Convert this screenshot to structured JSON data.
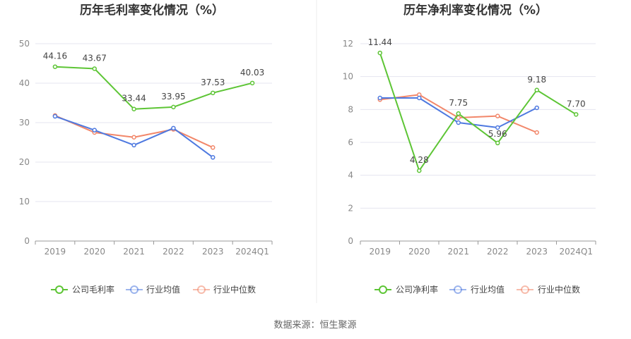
{
  "colors": {
    "company": "#5dc535",
    "industry_avg": "#4e79e0",
    "industry_median": "#f2876a",
    "grid": "#e5e5ef",
    "axis": "#999999",
    "divider": "#eeeeee"
  },
  "source_text": "数据来源：恒生聚源",
  "chart_data": [
    {
      "type": "line",
      "title": "历年毛利率变化情况（%）",
      "categories": [
        "2019",
        "2020",
        "2021",
        "2022",
        "2023",
        "2024Q1"
      ],
      "ylim": [
        0,
        50
      ],
      "yticks": [
        0,
        10,
        20,
        30,
        40,
        50
      ],
      "grid": true,
      "legend_position": "bottom",
      "series": [
        {
          "name": "公司毛利率",
          "color_key": "company",
          "values": [
            44.16,
            43.67,
            33.44,
            33.95,
            37.53,
            40.03
          ],
          "labels": [
            "44.16",
            "43.67",
            "33.44",
            "33.95",
            "37.53",
            "40.03"
          ]
        },
        {
          "name": "行业均值",
          "color_key": "industry_avg",
          "values": [
            31.6,
            28.1,
            24.3,
            28.6,
            21.2,
            null
          ]
        },
        {
          "name": "行业中位数",
          "color_key": "industry_median",
          "values": [
            31.8,
            27.5,
            26.3,
            28.3,
            23.7,
            null
          ]
        }
      ]
    },
    {
      "type": "line",
      "title": "历年净利率变化情况（%）",
      "categories": [
        "2019",
        "2020",
        "2021",
        "2022",
        "2023",
        "2024Q1"
      ],
      "ylim": [
        0,
        12
      ],
      "yticks": [
        0,
        2,
        4,
        6,
        8,
        10,
        12
      ],
      "grid": true,
      "legend_position": "bottom",
      "series": [
        {
          "name": "公司净利率",
          "color_key": "company",
          "values": [
            11.44,
            4.28,
            7.75,
            5.96,
            9.18,
            7.7
          ],
          "labels": [
            "11.44",
            "4.28",
            "7.75",
            "5.96",
            "9.18",
            "7.70"
          ]
        },
        {
          "name": "行业均值",
          "color_key": "industry_avg",
          "values": [
            8.7,
            8.7,
            7.2,
            6.9,
            8.1,
            null
          ]
        },
        {
          "name": "行业中位数",
          "color_key": "industry_median",
          "values": [
            8.6,
            8.9,
            7.5,
            7.6,
            6.6,
            null
          ]
        }
      ]
    }
  ]
}
